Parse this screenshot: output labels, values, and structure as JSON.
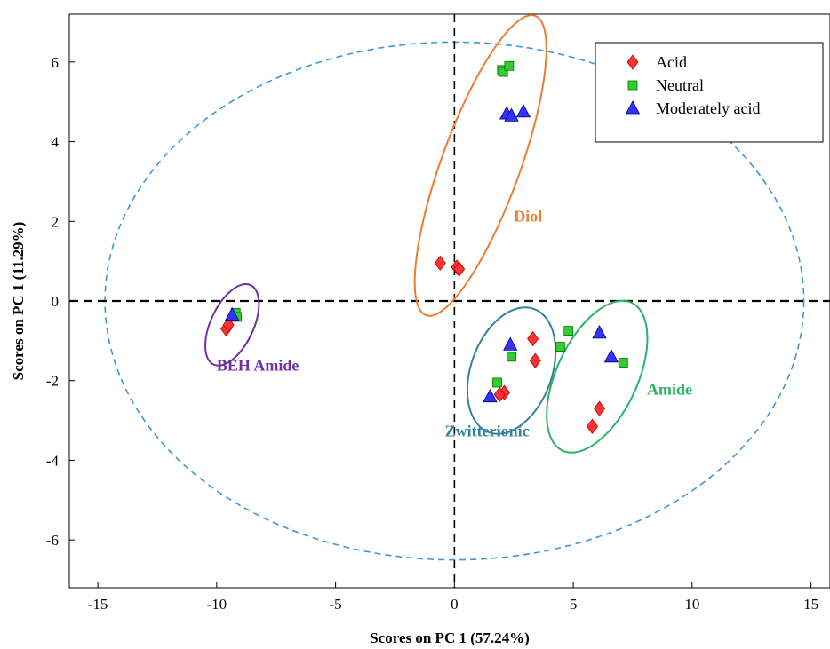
{
  "chart_data": {
    "type": "scatter",
    "xlabel": "Scores on PC 1 (57.24%)",
    "ylabel": "Scores on PC 1 (11.29%)",
    "xlim": [
      -16.2,
      15.8
    ],
    "ylim": [
      -7.2,
      7.2
    ],
    "xticks": [
      -15,
      -10,
      -5,
      0,
      5,
      10,
      15
    ],
    "yticks": [
      -6,
      -4,
      -2,
      0,
      2,
      4,
      6
    ],
    "grid": false,
    "legend_position": "top-right",
    "series": [
      {
        "name": "Acid",
        "marker": "diamond",
        "color": "#ff3333",
        "points": [
          [
            -9.6,
            -0.7
          ],
          [
            -9.5,
            -0.6
          ],
          [
            -0.6,
            0.95
          ],
          [
            0.1,
            0.85
          ],
          [
            0.2,
            0.8
          ],
          [
            3.3,
            -0.95
          ],
          [
            3.4,
            -1.5
          ],
          [
            2.1,
            -2.3
          ],
          [
            1.9,
            -2.35
          ],
          [
            6.1,
            -2.7
          ],
          [
            5.8,
            -3.15
          ]
        ]
      },
      {
        "name": "Neutral",
        "marker": "square",
        "color": "#33cc33",
        "points": [
          [
            -9.2,
            -0.3
          ],
          [
            -9.15,
            -0.4
          ],
          [
            2.0,
            5.8
          ],
          [
            2.05,
            5.75
          ],
          [
            2.3,
            5.9
          ],
          [
            2.4,
            -1.4
          ],
          [
            1.8,
            -2.05
          ],
          [
            4.8,
            -0.75
          ],
          [
            4.45,
            -1.15
          ],
          [
            7.1,
            -1.55
          ]
        ]
      },
      {
        "name": "Moderately acid",
        "marker": "triangle",
        "color": "#3333ff",
        "points": [
          [
            -9.35,
            -0.35
          ],
          [
            2.2,
            4.7
          ],
          [
            2.4,
            4.65
          ],
          [
            2.9,
            4.75
          ],
          [
            2.35,
            -1.1
          ],
          [
            1.5,
            -2.4
          ],
          [
            6.1,
            -0.8
          ],
          [
            6.6,
            -1.4
          ]
        ]
      }
    ],
    "groups": [
      {
        "label": "BEH Amide",
        "color": "#7030a0",
        "ellipse": {
          "cx": -9.35,
          "cy": -0.6,
          "rx": 0.9,
          "ry": 1.1,
          "angle": 25
        },
        "label_pos": [
          -10,
          -1.75
        ]
      },
      {
        "label": "Diol",
        "color": "#ed7d31",
        "ellipse": {
          "cx": 1.1,
          "cy": 3.4,
          "rx": 1.65,
          "ry": 4.0,
          "angle": 20
        },
        "label_pos": [
          2.5,
          2.0
        ]
      },
      {
        "label": "Zwitterionic",
        "color": "#31849b",
        "ellipse": {
          "cx": 2.4,
          "cy": -1.75,
          "rx": 1.7,
          "ry": 1.65,
          "angle": 20
        },
        "label_pos": [
          -0.4,
          -3.4
        ]
      },
      {
        "label": "Amide",
        "color": "#28b463",
        "ellipse": {
          "cx": 6.0,
          "cy": -1.9,
          "rx": 1.7,
          "ry": 2.05,
          "angle": 25
        },
        "label_pos": [
          8.1,
          -2.35
        ]
      }
    ],
    "confidence_ellipse": {
      "cx": 0.0,
      "cy": 0.0,
      "rx": 14.7,
      "ry": 6.5,
      "color": "#3d96d8"
    },
    "zero_lines": true
  }
}
